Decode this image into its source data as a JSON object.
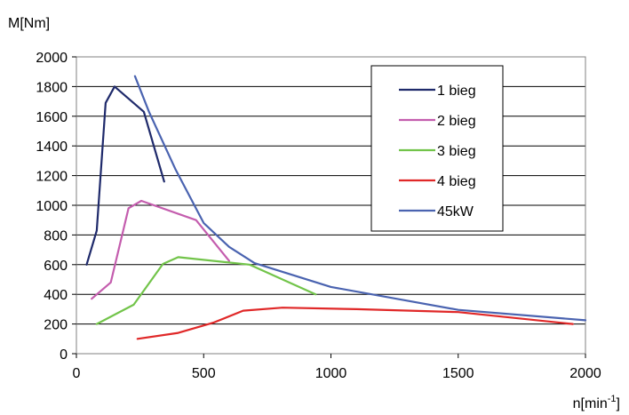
{
  "chart_data": {
    "type": "line",
    "title": "",
    "ylabel": "M[Nm]",
    "xlabel_base": "n[min",
    "xlabel_sup": "-1",
    "xlabel_close": "]",
    "xlim": [
      0,
      2000
    ],
    "ylim": [
      0,
      2000
    ],
    "xticks": [
      0,
      500,
      1000,
      1500,
      2000
    ],
    "yticks": [
      0,
      200,
      400,
      600,
      800,
      1000,
      1200,
      1400,
      1600,
      1800,
      2000
    ],
    "grid": "horizontal",
    "legend_position": "top-right",
    "series": [
      {
        "name": "1 bieg",
        "color": "#1f2a6b",
        "x": [
          40,
          80,
          115,
          150,
          265,
          345
        ],
        "y": [
          600,
          830,
          1690,
          1800,
          1630,
          1160
        ]
      },
      {
        "name": "2 bieg",
        "color": "#c45dae",
        "x": [
          60,
          135,
          205,
          255,
          470,
          600
        ],
        "y": [
          370,
          480,
          980,
          1030,
          900,
          625
        ]
      },
      {
        "name": "3 bieg",
        "color": "#72c44a",
        "x": [
          80,
          225,
          340,
          400,
          680,
          940
        ],
        "y": [
          200,
          330,
          605,
          650,
          600,
          400
        ]
      },
      {
        "name": "4 bieg",
        "color": "#e02828",
        "x": [
          240,
          400,
          540,
          655,
          810,
          1100,
          1500,
          1950
        ],
        "y": [
          100,
          140,
          210,
          290,
          310,
          300,
          280,
          200
        ]
      },
      {
        "name": "45kW",
        "color": "#4a63b0",
        "x": [
          230,
          285,
          390,
          500,
          600,
          700,
          1000,
          1500,
          2000
        ],
        "y": [
          1870,
          1630,
          1240,
          880,
          720,
          610,
          450,
          295,
          225
        ]
      }
    ]
  }
}
